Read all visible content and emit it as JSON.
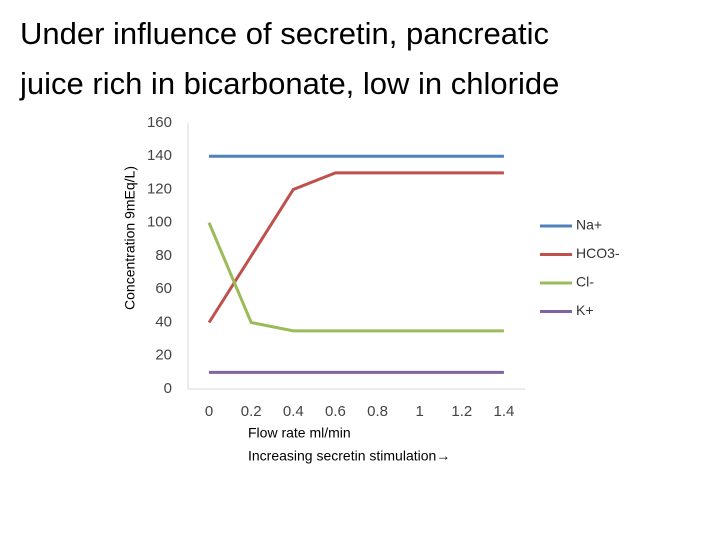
{
  "chart_data": {
    "type": "line",
    "title": "Under influence of secretin, pancreatic juice rich in bicarbonate, low in chloride",
    "y_label": "Concentration 9mEq/L)",
    "x_label": "Flow rate ml/min",
    "x_sublabel": "Increasing secretin stimulation→",
    "categories": [
      "0",
      "0.2",
      "0.4",
      "0.6",
      "0.8",
      "1",
      "1.2",
      "1.4"
    ],
    "series": [
      {
        "name": "Na+",
        "color": "#4f81bd",
        "values": [
          140,
          140,
          140,
          140,
          140,
          140,
          140,
          140
        ]
      },
      {
        "name": "HCO3-",
        "color": "#c0504d",
        "values": [
          40,
          80,
          120,
          130,
          130,
          130,
          130,
          130
        ]
      },
      {
        "name": "Cl-",
        "color": "#9bbb59",
        "values": [
          100,
          40,
          35,
          35,
          35,
          35,
          35,
          35
        ]
      },
      {
        "name": "K+",
        "color": "#8064a2",
        "values": [
          10,
          10,
          10,
          10,
          10,
          10,
          10,
          10
        ]
      }
    ],
    "ylim": [
      0,
      160
    ],
    "yticks": [
      0,
      20,
      40,
      60,
      80,
      100,
      120,
      140,
      160
    ],
    "grid": false,
    "legend": "right"
  }
}
